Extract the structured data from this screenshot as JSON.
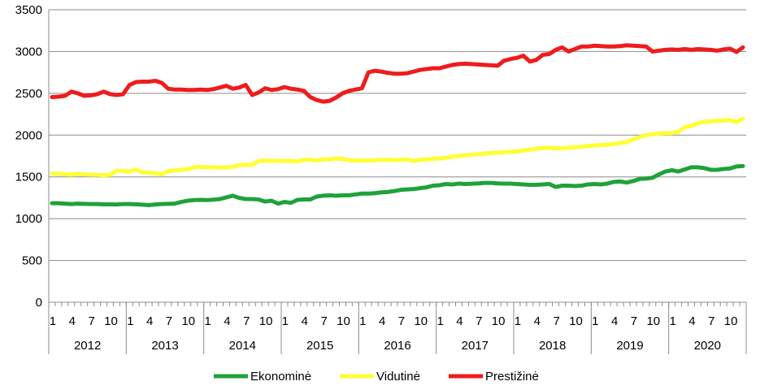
{
  "chart_data": {
    "type": "line",
    "title": "",
    "xlabel": "",
    "ylabel": "",
    "ylim": [
      0,
      3500
    ],
    "y_ticks": [
      0,
      500,
      1000,
      1500,
      2000,
      2500,
      3000,
      3500
    ],
    "grid": "horizontal",
    "legend_position": "bottom",
    "month_tick_labels": [
      "1",
      "4",
      "7",
      "10"
    ],
    "years": [
      "2012",
      "2013",
      "2014",
      "2015",
      "2016",
      "2017",
      "2018",
      "2019",
      "2020"
    ],
    "series": [
      {
        "name": "Ekonominė",
        "color": "#1fa23a",
        "values": [
          1185,
          1185,
          1180,
          1175,
          1180,
          1178,
          1175,
          1175,
          1172,
          1172,
          1170,
          1175,
          1175,
          1172,
          1168,
          1162,
          1170,
          1175,
          1178,
          1180,
          1200,
          1215,
          1222,
          1225,
          1222,
          1228,
          1235,
          1255,
          1275,
          1248,
          1235,
          1235,
          1230,
          1205,
          1215,
          1180,
          1200,
          1190,
          1225,
          1230,
          1230,
          1265,
          1275,
          1280,
          1275,
          1280,
          1280,
          1290,
          1300,
          1300,
          1305,
          1315,
          1320,
          1330,
          1345,
          1350,
          1355,
          1365,
          1375,
          1395,
          1400,
          1415,
          1410,
          1420,
          1415,
          1418,
          1422,
          1428,
          1428,
          1422,
          1420,
          1420,
          1415,
          1410,
          1405,
          1405,
          1410,
          1415,
          1380,
          1395,
          1395,
          1390,
          1395,
          1410,
          1415,
          1410,
          1420,
          1440,
          1445,
          1432,
          1450,
          1475,
          1480,
          1490,
          1530,
          1565,
          1580,
          1565,
          1590,
          1615,
          1615,
          1605,
          1585,
          1585,
          1595,
          1600,
          1625,
          1630
        ]
      },
      {
        "name": "Vidutinė",
        "color": "#ffff33",
        "values": [
          1540,
          1540,
          1530,
          1525,
          1535,
          1530,
          1525,
          1525,
          1520,
          1525,
          1575,
          1570,
          1565,
          1585,
          1555,
          1550,
          1545,
          1530,
          1570,
          1575,
          1585,
          1590,
          1615,
          1620,
          1615,
          1615,
          1610,
          1615,
          1620,
          1640,
          1645,
          1645,
          1690,
          1695,
          1690,
          1695,
          1690,
          1690,
          1685,
          1705,
          1705,
          1695,
          1710,
          1710,
          1720,
          1715,
          1700,
          1695,
          1695,
          1695,
          1700,
          1705,
          1705,
          1700,
          1705,
          1710,
          1690,
          1705,
          1710,
          1715,
          1720,
          1730,
          1740,
          1750,
          1760,
          1765,
          1770,
          1780,
          1785,
          1790,
          1795,
          1800,
          1805,
          1815,
          1825,
          1840,
          1845,
          1850,
          1840,
          1845,
          1850,
          1855,
          1860,
          1870,
          1875,
          1880,
          1885,
          1895,
          1905,
          1915,
          1950,
          1975,
          2000,
          2010,
          2020,
          2025,
          2025,
          2040,
          2095,
          2110,
          2140,
          2160,
          2165,
          2170,
          2175,
          2180,
          2155,
          2195
        ]
      },
      {
        "name": "Prestižinė",
        "color": "#ee1c1c",
        "values": [
          2455,
          2460,
          2470,
          2520,
          2500,
          2470,
          2475,
          2490,
          2520,
          2490,
          2480,
          2490,
          2600,
          2635,
          2640,
          2640,
          2650,
          2625,
          2555,
          2545,
          2545,
          2540,
          2540,
          2545,
          2540,
          2550,
          2570,
          2590,
          2555,
          2570,
          2600,
          2480,
          2510,
          2560,
          2540,
          2550,
          2575,
          2555,
          2545,
          2530,
          2455,
          2420,
          2400,
          2410,
          2450,
          2500,
          2530,
          2545,
          2560,
          2750,
          2770,
          2760,
          2745,
          2735,
          2735,
          2740,
          2760,
          2780,
          2790,
          2800,
          2800,
          2820,
          2840,
          2850,
          2855,
          2850,
          2845,
          2840,
          2835,
          2830,
          2890,
          2910,
          2925,
          2950,
          2880,
          2900,
          2960,
          2970,
          3020,
          3050,
          3000,
          3030,
          3060,
          3060,
          3070,
          3065,
          3060,
          3060,
          3065,
          3075,
          3070,
          3065,
          3060,
          3000,
          3010,
          3020,
          3025,
          3020,
          3030,
          3020,
          3030,
          3025,
          3020,
          3010,
          3025,
          3035,
          2995,
          3050
        ]
      }
    ]
  }
}
